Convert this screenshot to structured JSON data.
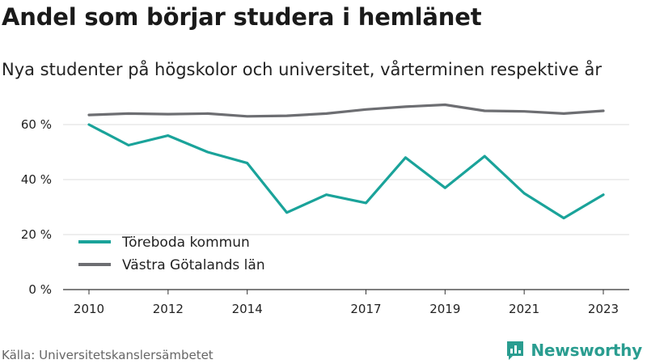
{
  "header": {
    "title": "Andel som börjar studera i hemlänet",
    "subtitle": "Nya studenter på högskolor och universitet, vårterminen respektive år"
  },
  "footer": {
    "source": "Källa: Universitetskanslersämbetet",
    "brand": "Newsworthy",
    "brand_icon": "bar-chart-speech-bubble-icon"
  },
  "colors": {
    "series_1": "#1aa39a",
    "series_2": "#6d6e72",
    "grid": "#dddddd",
    "axis": "#333333",
    "brand": "#2a9d90"
  },
  "chart_data": {
    "type": "line",
    "title": "Andel som börjar studera i hemlänet",
    "subtitle": "Nya studenter på högskolor och universitet, vårterminen respektive år",
    "xlabel": "",
    "ylabel": "",
    "x": [
      2010,
      2011,
      2012,
      2013,
      2014,
      2015,
      2016,
      2017,
      2018,
      2019,
      2020,
      2021,
      2022,
      2023
    ],
    "xticks": [
      2010,
      2012,
      2014,
      2017,
      2019,
      2021,
      2023
    ],
    "yticks": [
      0,
      20,
      40,
      60
    ],
    "ytick_labels": [
      "0 %",
      "20 %",
      "40 %",
      "60 %"
    ],
    "ylim": [
      0,
      70
    ],
    "grid": "horizontal",
    "legend": "bottom-left",
    "series": [
      {
        "name": "Töreboda kommun",
        "color": "#1aa39a",
        "values": [
          60,
          52.5,
          56,
          50,
          46,
          28,
          34.5,
          31.5,
          48,
          37,
          48.5,
          35,
          26,
          34.5
        ]
      },
      {
        "name": "Västra Götalands län",
        "color": "#6d6e72",
        "values": [
          63.5,
          64,
          63.8,
          64,
          63,
          63.2,
          64,
          65.5,
          66.5,
          67.2,
          65,
          64.8,
          64,
          65
        ]
      }
    ]
  }
}
